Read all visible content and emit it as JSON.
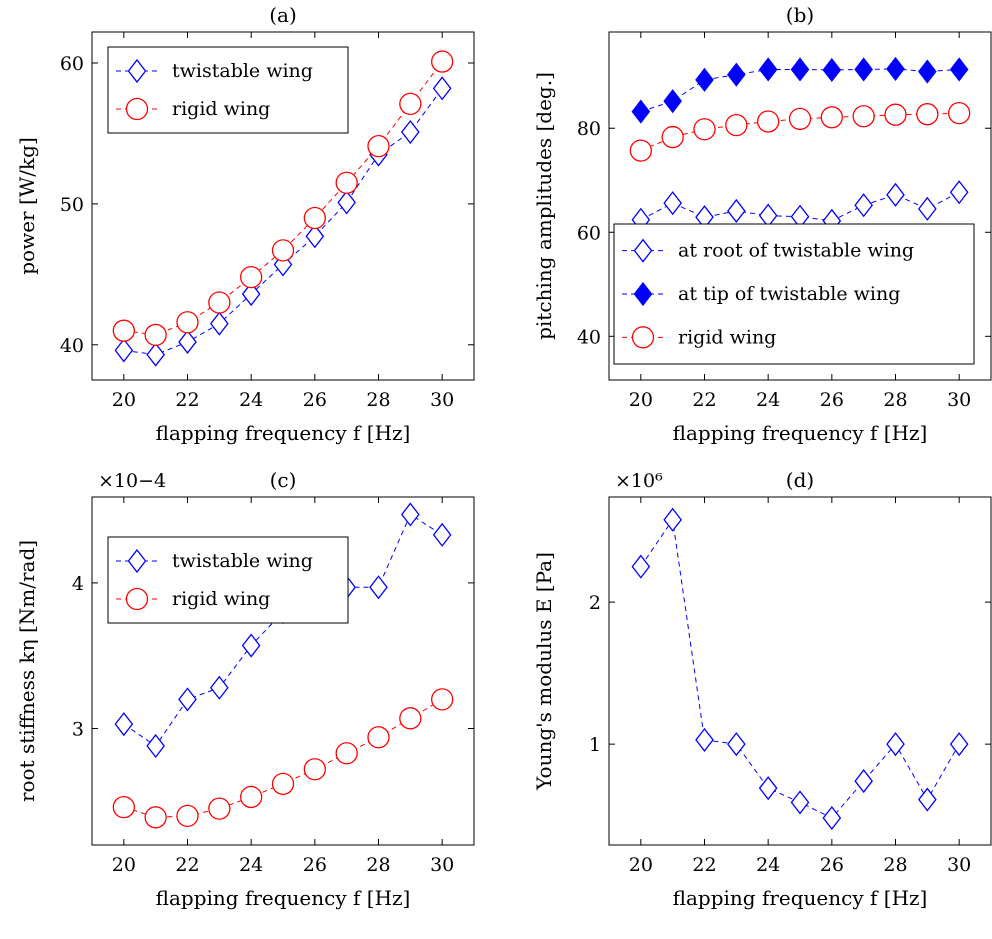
{
  "chart_data": [
    {
      "type": "line",
      "title": "(a)",
      "xlabel": "flapping frequency f [Hz]",
      "ylabel": "power [W/kg]",
      "multiplier": "",
      "xlim": [
        19,
        31
      ],
      "ylim": [
        37.5,
        62.2
      ],
      "xticks": [
        20,
        22,
        24,
        26,
        28,
        30
      ],
      "yticks": [
        40,
        50,
        60
      ],
      "x": [
        20,
        21,
        22,
        23,
        24,
        25,
        26,
        27,
        28,
        29,
        30
      ],
      "legend_position": "top-left",
      "series": [
        {
          "name": "twistable wing",
          "marker": "diamond-open",
          "color": "#0000ff",
          "values": [
            39.6,
            39.3,
            40.2,
            41.5,
            43.6,
            45.7,
            47.7,
            50.1,
            53.5,
            55.1,
            58.2
          ]
        },
        {
          "name": "rigid wing",
          "marker": "circle-open",
          "color": "#ff0000",
          "values": [
            41.0,
            40.7,
            41.6,
            43.0,
            44.8,
            46.7,
            49.0,
            51.5,
            54.1,
            57.1,
            60.1
          ]
        }
      ]
    },
    {
      "type": "line",
      "title": "(b)",
      "xlabel": "flapping frequency f [Hz]",
      "ylabel": "pitching amplitudes [deg.]",
      "multiplier": "",
      "xlim": [
        19,
        31
      ],
      "ylim": [
        31.6,
        98.5
      ],
      "xticks": [
        20,
        22,
        24,
        26,
        28,
        30
      ],
      "yticks": [
        40,
        60,
        80
      ],
      "x": [
        20,
        21,
        22,
        23,
        24,
        25,
        26,
        27,
        28,
        29,
        30
      ],
      "legend_position": "bottom-left",
      "series": [
        {
          "name": "at root of twistable wing",
          "marker": "diamond-open",
          "color": "#0000ff",
          "values": [
            62.4,
            65.6,
            62.9,
            64.1,
            63.2,
            63.0,
            62.2,
            65.2,
            67.2,
            64.5,
            67.7
          ]
        },
        {
          "name": "at tip of twistable wing",
          "marker": "diamond-filled",
          "color": "#0000ff",
          "values": [
            83.2,
            85.2,
            89.3,
            90.3,
            91.3,
            91.3,
            91.2,
            91.3,
            91.4,
            90.9,
            91.3
          ]
        },
        {
          "name": "rigid wing",
          "marker": "circle-open",
          "color": "#ff0000",
          "values": [
            75.7,
            78.3,
            79.8,
            80.6,
            81.3,
            81.8,
            82.1,
            82.3,
            82.6,
            82.7,
            82.9
          ]
        }
      ]
    },
    {
      "type": "line",
      "title": "(c)",
      "xlabel": "flapping frequency f [Hz]",
      "ylabel": "root stiffness kη [Nm/rad]",
      "multiplier": "×10−4",
      "xlim": [
        19,
        31
      ],
      "ylim": [
        2.2,
        4.59
      ],
      "xticks": [
        20,
        22,
        24,
        26,
        28,
        30
      ],
      "yticks": [
        3,
        4
      ],
      "x": [
        20,
        21,
        22,
        23,
        24,
        25,
        26,
        27,
        28,
        29,
        30
      ],
      "legend_position": "top-left",
      "series": [
        {
          "name": "twistable wing",
          "marker": "diamond-open",
          "color": "#0000ff",
          "values": [
            3.03,
            2.88,
            3.2,
            3.28,
            3.57,
            3.8,
            4.03,
            3.97,
            3.97,
            4.47,
            4.33
          ]
        },
        {
          "name": "rigid wing",
          "marker": "circle-open",
          "color": "#ff0000",
          "values": [
            2.46,
            2.39,
            2.4,
            2.45,
            2.53,
            2.62,
            2.72,
            2.83,
            2.94,
            3.07,
            3.2
          ]
        }
      ]
    },
    {
      "type": "line",
      "title": "(d)",
      "xlabel": "flapping frequency f [Hz]",
      "ylabel": "Young's modulus E [Pa]",
      "multiplier": "×10⁶",
      "xlim": [
        19,
        31
      ],
      "ylim": [
        0.29,
        2.74
      ],
      "xticks": [
        20,
        22,
        24,
        26,
        28,
        30
      ],
      "yticks": [
        1,
        2
      ],
      "x": [
        20,
        21,
        22,
        23,
        24,
        25,
        26,
        27,
        28,
        29,
        30
      ],
      "legend_position": "none",
      "series": [
        {
          "name": "",
          "marker": "diamond-open",
          "color": "#0000ff",
          "values": [
            2.25,
            2.58,
            1.03,
            1.0,
            0.69,
            0.59,
            0.48,
            0.74,
            1.0,
            0.61,
            1.0
          ]
        }
      ]
    }
  ]
}
